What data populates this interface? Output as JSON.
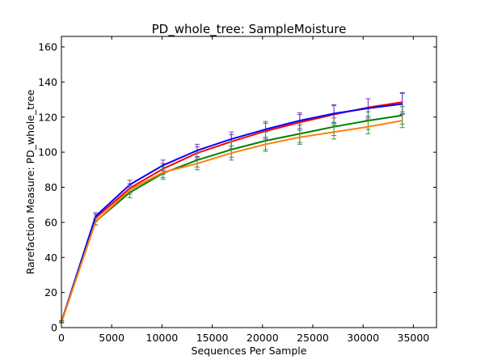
{
  "chart_data": {
    "type": "line",
    "title": "PD_whole_tree: SampleMoisture",
    "xlabel": "Sequences Per Sample",
    "ylabel": "Rarefaction Measure: PD_whole_tree",
    "xlim": [
      0,
      37300
    ],
    "ylim": [
      0,
      166
    ],
    "x_ticks": [
      0,
      5000,
      10000,
      15000,
      20000,
      25000,
      30000,
      35000
    ],
    "y_ticks": [
      0,
      20,
      40,
      60,
      80,
      100,
      120,
      140,
      160
    ],
    "grid": false,
    "x": [
      10,
      3400,
      6800,
      10100,
      13500,
      16900,
      20300,
      23700,
      27100,
      30500,
      33900
    ],
    "series": [
      {
        "color": "#ff0000",
        "values": [
          3.5,
          62.5,
          79.5,
          90.5,
          99.5,
          106,
          112,
          117,
          121.5,
          125.5,
          128.5
        ],
        "errors": [
          0.5,
          2,
          2.5,
          3,
          3.5,
          4,
          4.5,
          4.5,
          5,
          5,
          5.5
        ],
        "error_color": "#7b3fbf"
      },
      {
        "color": "#0000ff",
        "values": [
          3.5,
          63.5,
          81.5,
          92.5,
          101,
          107.5,
          113,
          118,
          122,
          125,
          127.5
        ],
        "errors": [
          0.5,
          2,
          2.5,
          3,
          3.5,
          4,
          4.5,
          4.5,
          5,
          5.5,
          6
        ],
        "error_color": "#7b3fbf"
      },
      {
        "color": "#008000",
        "values": [
          3.2,
          60.5,
          77,
          88,
          95.5,
          101.5,
          106.5,
          110.5,
          114.5,
          118,
          121
        ],
        "errors": [
          0.5,
          2,
          3,
          3.5,
          4,
          4.5,
          5,
          5,
          5,
          5,
          5
        ],
        "error_color": "#3a9a3a"
      },
      {
        "color": "#ff7f0e",
        "values": [
          3.2,
          60.5,
          78.5,
          88.5,
          93.5,
          99.5,
          104.5,
          108.5,
          111.5,
          114.5,
          118
        ],
        "errors": [
          0.5,
          2,
          2.5,
          3,
          3.5,
          4,
          4,
          4,
          4,
          4,
          4
        ],
        "error_color": "#3a9a3a"
      }
    ]
  }
}
